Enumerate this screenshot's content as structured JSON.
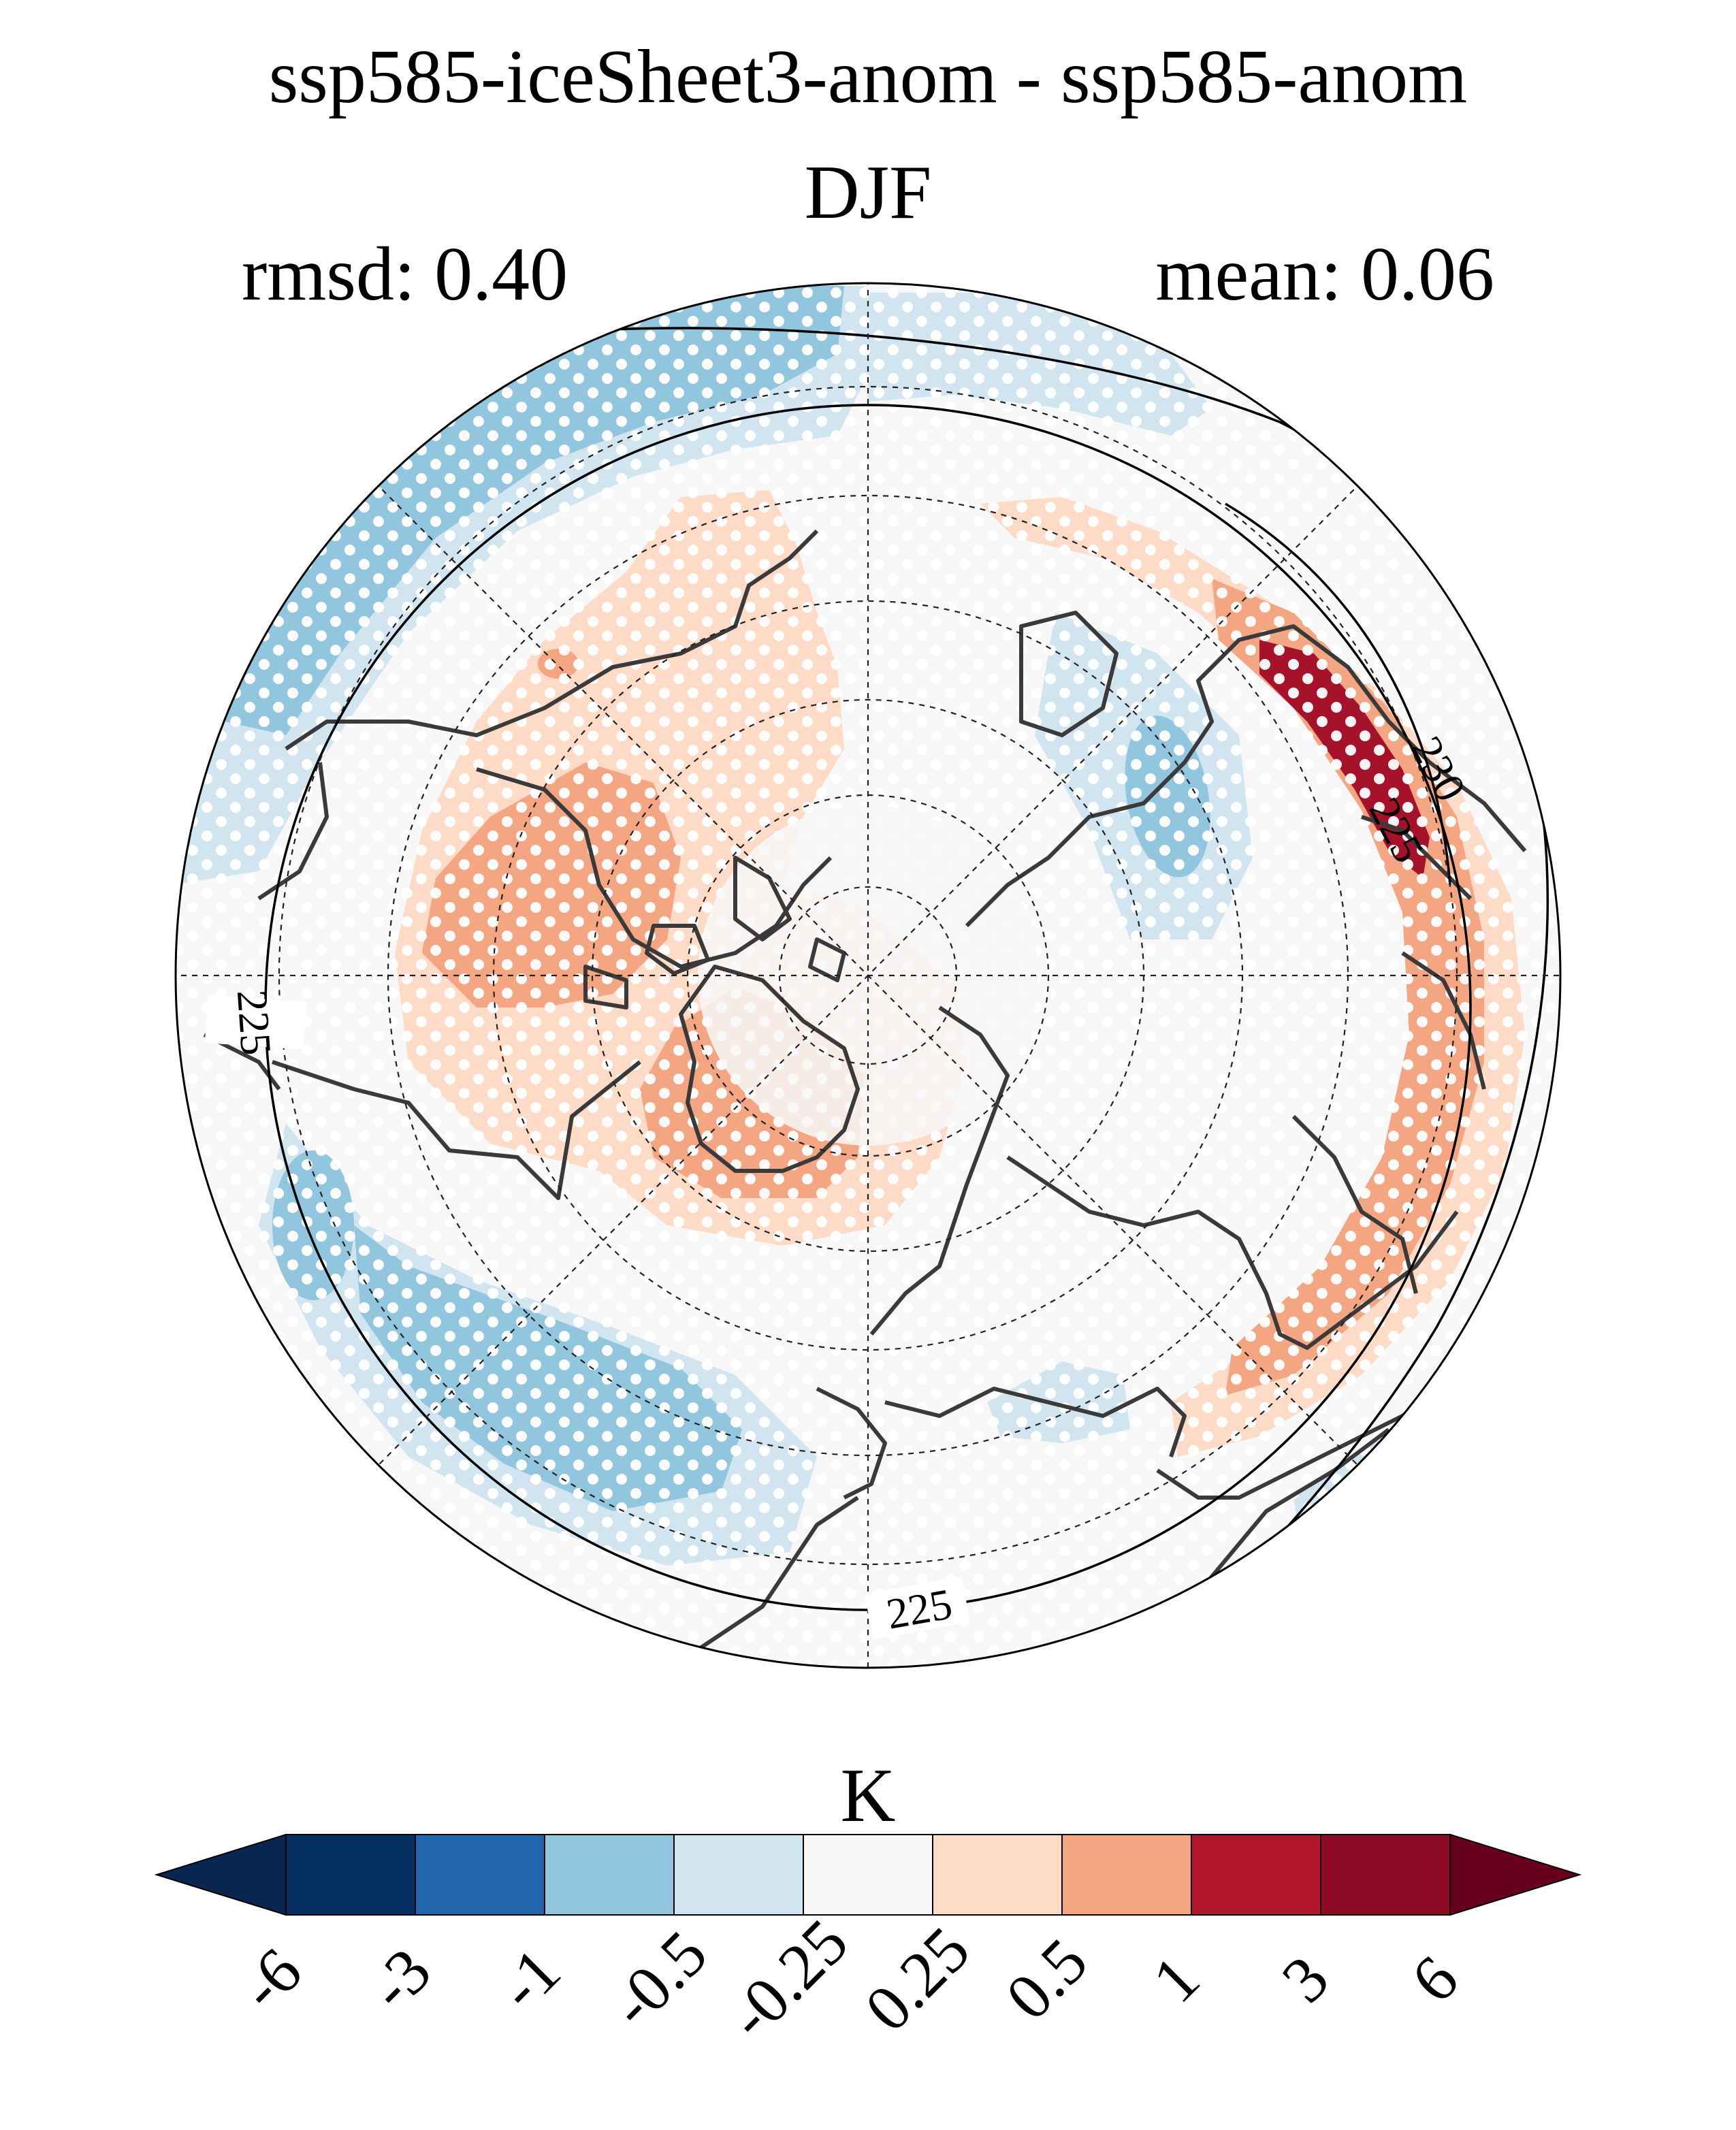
{
  "title": "ssp585-iceSheet3-anom - ssp585-anom",
  "season": "DJF",
  "rmsd_text": "rmsd: 0.40",
  "mean_text": "mean: 0.06",
  "colorbar": {
    "unit": "K",
    "ticks": [
      "-6",
      "-3",
      "-1",
      "-0.5",
      "-0.25",
      "0.25",
      "0.5",
      "1",
      "3",
      "6"
    ],
    "colors": [
      "#08264f",
      "#053061",
      "#2166ac",
      "#92c5de",
      "#d1e5f0",
      "#f7f7f7",
      "#fddbc7",
      "#f4a582",
      "#b2182b",
      "#8e0b25",
      "#67001f"
    ]
  },
  "contours": {
    "labels": [
      "225",
      "225",
      "225",
      "230"
    ]
  },
  "colors": {
    "coast": "#3a3a3a",
    "grid": "#222222",
    "stipple": "#ffffff"
  }
}
